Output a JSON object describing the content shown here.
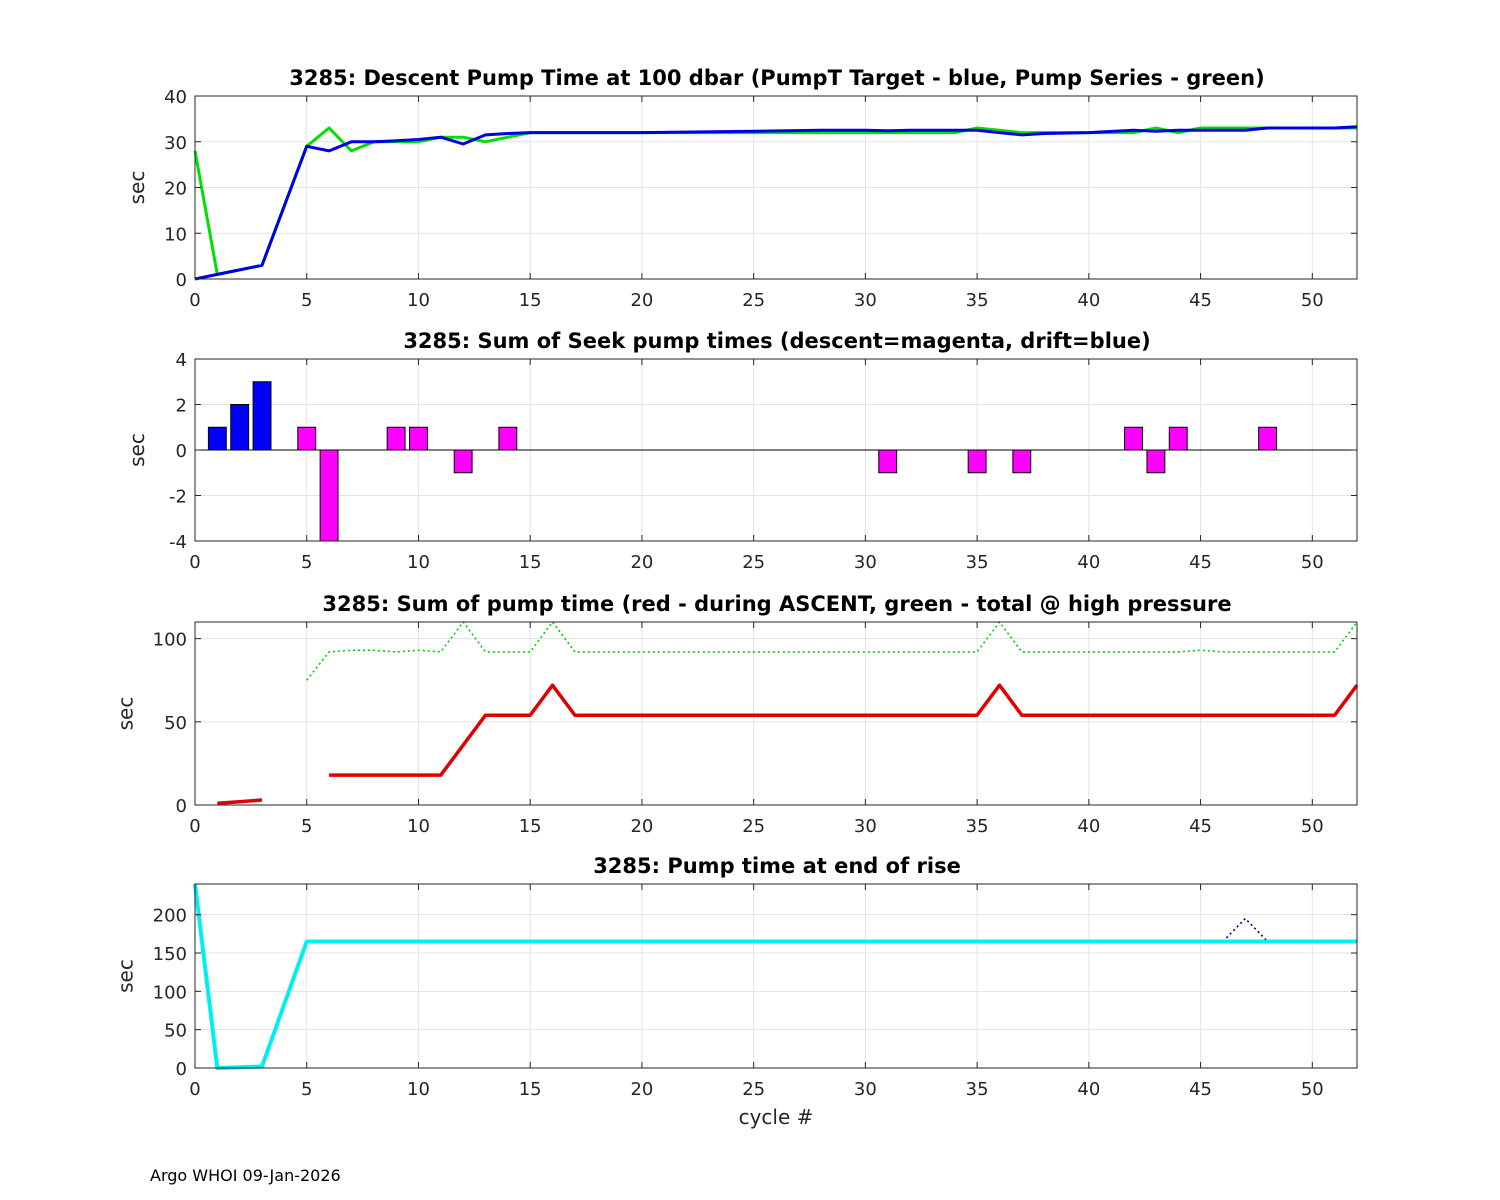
{
  "footer": "Argo WHOI 09-Jan-2026",
  "chart_data": [
    {
      "type": "line",
      "title": "3285: Descent Pump Time at 100 dbar (PumpT Target - blue, Pump Series - green)",
      "xlabel": "",
      "ylabel": "sec",
      "xlim": [
        0,
        52
      ],
      "ylim": [
        0,
        40
      ],
      "xticks": [
        0,
        5,
        10,
        15,
        20,
        25,
        30,
        35,
        40,
        45,
        50
      ],
      "yticks": [
        0,
        10,
        20,
        30,
        40
      ],
      "grid": true,
      "series": [
        {
          "color": "#00e000",
          "style": "solid",
          "width": 3,
          "points": [
            [
              0,
              28
            ],
            [
              1,
              1
            ],
            [
              2,
              2
            ],
            [
              3,
              3
            ],
            [
              5,
              29
            ],
            [
              6,
              33
            ],
            [
              7,
              28
            ],
            [
              8,
              30
            ],
            [
              9,
              30
            ],
            [
              10,
              30
            ],
            [
              11,
              31
            ],
            [
              12,
              31
            ],
            [
              13,
              30
            ],
            [
              14,
              31
            ],
            [
              15,
              32
            ],
            [
              20,
              32
            ],
            [
              25,
              32
            ],
            [
              30,
              32
            ],
            [
              34,
              32
            ],
            [
              35,
              33
            ],
            [
              36,
              32.5
            ],
            [
              37,
              32
            ],
            [
              38,
              32
            ],
            [
              40,
              32
            ],
            [
              41,
              32
            ],
            [
              42,
              32
            ],
            [
              43,
              33
            ],
            [
              44,
              32
            ],
            [
              45,
              33
            ],
            [
              46,
              33
            ],
            [
              47,
              33
            ],
            [
              48,
              33
            ],
            [
              50,
              33
            ],
            [
              52,
              33
            ]
          ]
        },
        {
          "color": "#0000e6",
          "style": "solid",
          "width": 3,
          "points": [
            [
              0,
              0
            ],
            [
              1,
              1
            ],
            [
              2,
              2
            ],
            [
              3,
              3
            ],
            [
              5,
              29
            ],
            [
              6,
              28
            ],
            [
              7,
              30
            ],
            [
              8,
              30
            ],
            [
              9,
              30.2
            ],
            [
              10,
              30.5
            ],
            [
              11,
              31
            ],
            [
              12,
              29.5
            ],
            [
              13,
              31.5
            ],
            [
              14,
              31.8
            ],
            [
              15,
              32
            ],
            [
              18,
              32
            ],
            [
              20,
              32
            ],
            [
              25,
              32.3
            ],
            [
              28,
              32.5
            ],
            [
              30,
              32.5
            ],
            [
              31,
              32.4
            ],
            [
              32,
              32.5
            ],
            [
              35,
              32.5
            ],
            [
              36,
              32
            ],
            [
              37,
              31.5
            ],
            [
              38,
              31.8
            ],
            [
              40,
              32
            ],
            [
              42,
              32.5
            ],
            [
              43,
              32.3
            ],
            [
              44,
              32.5
            ],
            [
              46,
              32.5
            ],
            [
              47,
              32.5
            ],
            [
              48,
              33
            ],
            [
              50,
              33
            ],
            [
              51,
              33
            ],
            [
              52,
              33.3
            ]
          ]
        }
      ]
    },
    {
      "type": "bar",
      "title": "3285: Sum of Seek pump times (descent=magenta, drift=blue)",
      "xlabel": "",
      "ylabel": "sec",
      "xlim": [
        0,
        52
      ],
      "ylim": [
        -4,
        4
      ],
      "xticks": [
        0,
        5,
        10,
        15,
        20,
        25,
        30,
        35,
        40,
        45,
        50
      ],
      "yticks": [
        -4,
        -2,
        0,
        2,
        4
      ],
      "grid": true,
      "series": [
        {
          "color": "#0000ff",
          "bars": [
            [
              1,
              1
            ],
            [
              2,
              2
            ],
            [
              3,
              3
            ]
          ]
        },
        {
          "color": "#ff00ff",
          "bars": [
            [
              5,
              1
            ],
            [
              6,
              -4
            ],
            [
              9,
              1
            ],
            [
              10,
              1
            ],
            [
              12,
              -1
            ],
            [
              14,
              1
            ],
            [
              31,
              -1
            ],
            [
              35,
              -1
            ],
            [
              37,
              -1
            ],
            [
              42,
              1
            ],
            [
              43,
              -1
            ],
            [
              44,
              1
            ],
            [
              48,
              1
            ]
          ]
        }
      ]
    },
    {
      "type": "line",
      "title": "3285: Sum of pump time (red - during ASCENT, green - total @ high pressure",
      "xlabel": "",
      "ylabel": "sec",
      "xlim": [
        0,
        52
      ],
      "ylim": [
        0,
        110
      ],
      "xticks": [
        0,
        5,
        10,
        15,
        20,
        25,
        30,
        35,
        40,
        45,
        50
      ],
      "yticks": [
        0,
        50,
        100
      ],
      "grid": true,
      "series": [
        {
          "color": "#e00000",
          "style": "solid",
          "width": 3.5,
          "points": [
            [
              1,
              1
            ],
            [
              2,
              2
            ],
            [
              3,
              3
            ]
          ]
        },
        {
          "color": "#e00000",
          "style": "solid",
          "width": 3.5,
          "points": [
            [
              6,
              18
            ],
            [
              11,
              18
            ],
            [
              13,
              54
            ],
            [
              15,
              54
            ],
            [
              16,
              72
            ],
            [
              17,
              54
            ],
            [
              35,
              54
            ],
            [
              36,
              72
            ],
            [
              37,
              54
            ],
            [
              51,
              54
            ],
            [
              52,
              72
            ]
          ]
        },
        {
          "color": "#00d000",
          "style": "dotted",
          "width": 1.6,
          "points": [
            [
              5,
              75
            ],
            [
              6,
              92
            ],
            [
              7,
              93
            ],
            [
              8,
              93
            ],
            [
              9,
              92
            ],
            [
              10,
              93
            ],
            [
              11,
              92
            ],
            [
              12,
              110
            ],
            [
              13,
              92
            ],
            [
              15,
              92
            ],
            [
              16,
              110
            ],
            [
              17,
              92
            ],
            [
              35,
              92
            ],
            [
              36,
              110
            ],
            [
              37,
              92
            ],
            [
              44,
              92
            ],
            [
              45,
              93
            ],
            [
              46,
              92
            ],
            [
              51,
              92
            ],
            [
              52,
              110
            ]
          ]
        }
      ]
    },
    {
      "type": "line",
      "title": "3285: Pump time at end of rise",
      "xlabel": "cycle #",
      "ylabel": "sec",
      "xlim": [
        0,
        52
      ],
      "ylim": [
        0,
        240
      ],
      "xticks": [
        0,
        5,
        10,
        15,
        20,
        25,
        30,
        35,
        40,
        45,
        50
      ],
      "yticks": [
        0,
        50,
        100,
        150,
        200
      ],
      "grid": true,
      "series": [
        {
          "color": "#000080",
          "style": "dotted",
          "width": 1.6,
          "points": [
            [
              46,
              165
            ],
            [
              47,
              195
            ],
            [
              48,
              165
            ]
          ]
        },
        {
          "color": "#00f0f0",
          "style": "solid",
          "width": 4,
          "points": [
            [
              0,
              240
            ],
            [
              1,
              0
            ],
            [
              3,
              2
            ],
            [
              5,
              165
            ],
            [
              52,
              165
            ]
          ]
        }
      ]
    }
  ]
}
